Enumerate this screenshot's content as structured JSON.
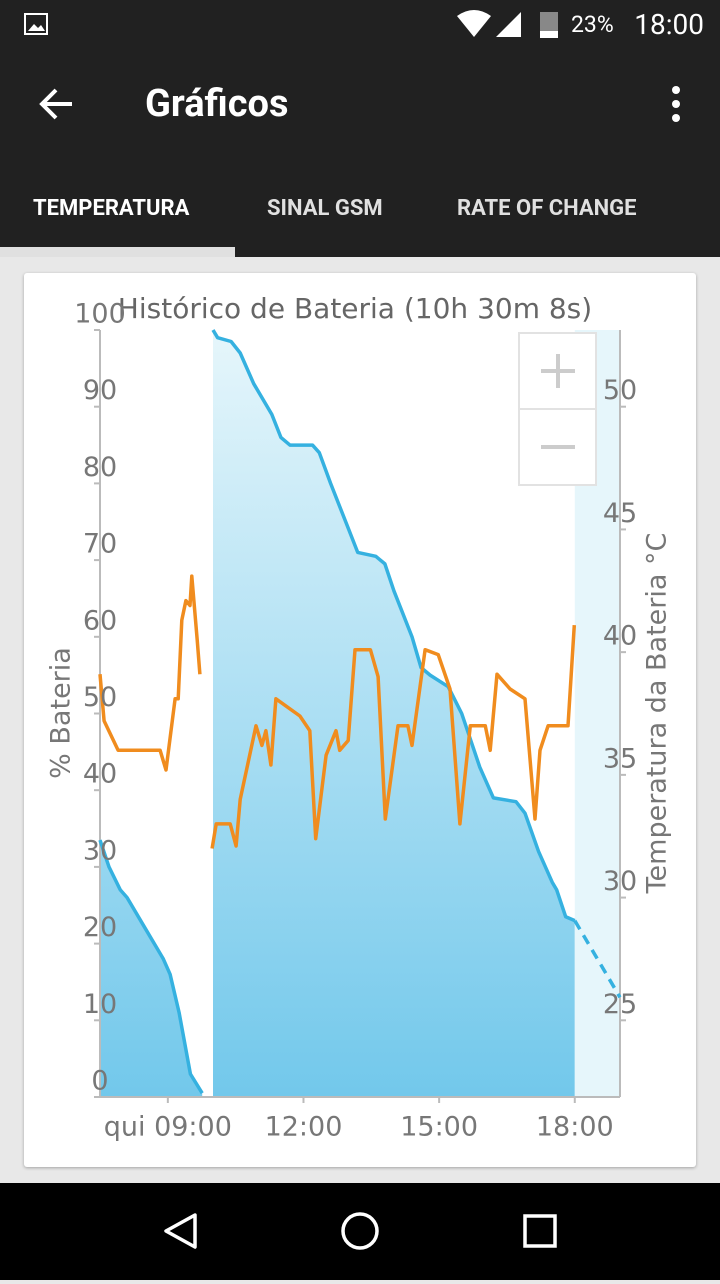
{
  "status_bar": {
    "battery": "23%",
    "time": "18:00"
  },
  "app_bar": {
    "title": "Gráficos"
  },
  "tabs": [
    "TEMPERATURA",
    "SINAL GSM",
    "RATE OF CHANGE"
  ],
  "chart_data": {
    "type": "line",
    "title": "Histórico de Bateria (10h 30m 8s)",
    "ylabel": "% Bateria",
    "y2label": "Temperatura da Bateria °C",
    "xlim": [
      7.5,
      19
    ],
    "xticks": [
      {
        "value": 9,
        "label": "qui 09:00"
      },
      {
        "value": 12,
        "label": "12:00"
      },
      {
        "value": 15,
        "label": "15:00"
      },
      {
        "value": 18,
        "label": "18:00"
      }
    ],
    "ylim": [
      0,
      100
    ],
    "yticks": [
      0,
      10,
      20,
      30,
      40,
      50,
      60,
      70,
      80,
      90,
      100
    ],
    "y2lim": [
      21.875,
      53.125
    ],
    "y2ticks": [
      25,
      30,
      35,
      40,
      45,
      50
    ],
    "series": [
      {
        "color": "#35b1e0",
        "fill": true,
        "x": [
          7.5,
          7.7,
          7.95,
          8.1,
          8.5,
          8.9,
          9.05,
          9.25,
          9.5,
          9.76,
          null,
          10.0,
          10.1,
          10.4,
          10.6,
          10.9,
          11.3,
          11.5,
          11.7,
          12.2,
          12.35,
          12.6,
          13.0,
          13.2,
          13.6,
          13.8,
          14.0,
          14.4,
          14.6,
          14.8,
          15.2,
          15.5,
          15.9,
          16.2,
          16.7,
          16.9,
          17.2,
          17.5,
          17.6,
          17.8,
          18.0
        ],
        "values": [
          33.5,
          30,
          27,
          26,
          22,
          18,
          16,
          11,
          3,
          0.5,
          null,
          100,
          99,
          98.5,
          97,
          93,
          89,
          86,
          85,
          85,
          84,
          80,
          74,
          71,
          70.5,
          69.5,
          66,
          60,
          56,
          55,
          53.5,
          50,
          43,
          39,
          38.5,
          37,
          32,
          28,
          27,
          23.5,
          23
        ]
      },
      {
        "color": "#35b1e0",
        "dashed": true,
        "x": [
          18.0,
          19.0
        ],
        "values": [
          23,
          13
        ]
      },
      {
        "color": "#f08c1e",
        "axis": "y2",
        "x": [
          7.5,
          7.59,
          7.9,
          8.83,
          8.96,
          9.16,
          9.23,
          9.31,
          9.4,
          9.49,
          9.53,
          9.65,
          9.71,
          null,
          9.98,
          10.07,
          10.38,
          10.51,
          10.6,
          10.95,
          11.08,
          11.17,
          11.28,
          11.39,
          11.92,
          12.14,
          12.27,
          12.5,
          12.72,
          12.8,
          12.99,
          13.14,
          13.48,
          13.65,
          13.81,
          14.09,
          14.31,
          14.4,
          14.69,
          14.98,
          15.24,
          15.46,
          15.69,
          16.02,
          16.13,
          16.28,
          16.57,
          16.9,
          17.12,
          17.23,
          17.41,
          17.85,
          17.99
        ],
        "values": [
          39.1,
          37.2,
          36.0,
          36.0,
          35.2,
          38.1,
          38.1,
          41.3,
          42.1,
          41.9,
          43.1,
          40.5,
          39.1,
          null,
          32.0,
          33.0,
          33.0,
          32.1,
          34.0,
          37.0,
          36.2,
          36.8,
          35.4,
          38.1,
          37.4,
          36.8,
          32.4,
          35.8,
          36.8,
          36.0,
          36.4,
          40.1,
          40.1,
          39.0,
          33.2,
          37.0,
          37.0,
          36.2,
          40.1,
          39.9,
          38.5,
          33.0,
          37.0,
          37.0,
          36.0,
          39.1,
          38.5,
          38.1,
          33.2,
          36.0,
          37.0,
          37.0,
          41.1
        ]
      }
    ]
  }
}
